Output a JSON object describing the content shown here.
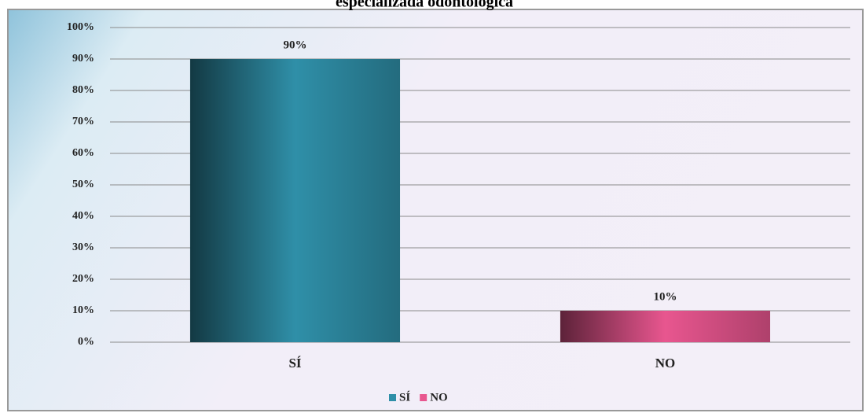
{
  "chart_data": {
    "type": "bar",
    "title": "especializada odontológica",
    "categories": [
      "SÍ",
      "NO"
    ],
    "values": [
      90,
      10
    ],
    "value_labels": [
      "90%",
      "10%"
    ],
    "colors": [
      "#2f8fa8",
      "#e8568f"
    ],
    "ylim": [
      0,
      100
    ],
    "yticks": [
      {
        "value": 0,
        "label": "0%"
      },
      {
        "value": 10,
        "label": "10%"
      },
      {
        "value": 20,
        "label": "20%"
      },
      {
        "value": 30,
        "label": "30%"
      },
      {
        "value": 40,
        "label": "40%"
      },
      {
        "value": 50,
        "label": "50%"
      },
      {
        "value": 60,
        "label": "60%"
      },
      {
        "value": 70,
        "label": "70%"
      },
      {
        "value": 80,
        "label": "80%"
      },
      {
        "value": 90,
        "label": "90%"
      },
      {
        "value": 100,
        "label": "100%"
      }
    ],
    "grid": true,
    "legend": "bottom"
  }
}
